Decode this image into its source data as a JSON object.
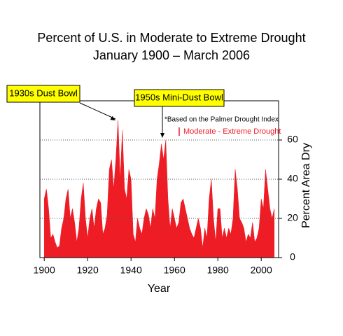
{
  "chart_data": {
    "type": "area",
    "title": "Percent of U.S. in Moderate to Extreme Drought",
    "subtitle": "January 1900 – March 2006",
    "x_label": "Year",
    "y_label": "Percent Area Dry",
    "note": "*Based on the Palmer Drought Index",
    "annotations": [
      {
        "text": "1930s Dust Bowl",
        "x": 1934
      },
      {
        "text": "1950s Mini-Dust Bowl",
        "x": 1956
      }
    ],
    "x": [
      1900,
      1901,
      1902,
      1903,
      1904,
      1905,
      1906,
      1907,
      1908,
      1909,
      1910,
      1911,
      1912,
      1913,
      1914,
      1915,
      1916,
      1917,
      1918,
      1919,
      1920,
      1921,
      1922,
      1923,
      1924,
      1925,
      1926,
      1927,
      1928,
      1929,
      1930,
      1931,
      1932,
      1933,
      1934,
      1935,
      1936,
      1937,
      1938,
      1939,
      1940,
      1941,
      1942,
      1943,
      1944,
      1945,
      1946,
      1947,
      1948,
      1949,
      1950,
      1951,
      1952,
      1953,
      1954,
      1955,
      1956,
      1957,
      1958,
      1959,
      1960,
      1961,
      1962,
      1963,
      1964,
      1965,
      1966,
      1967,
      1968,
      1969,
      1970,
      1971,
      1972,
      1973,
      1974,
      1975,
      1976,
      1977,
      1978,
      1979,
      1980,
      1981,
      1982,
      1983,
      1984,
      1985,
      1986,
      1987,
      1988,
      1989,
      1990,
      1991,
      1992,
      1993,
      1994,
      1995,
      1996,
      1997,
      1998,
      1999,
      2000,
      2001,
      2002,
      2003,
      2004,
      2005,
      2006
    ],
    "series": [
      {
        "name": "Moderate - Extreme Drought",
        "color": "#ee1c25",
        "values": [
          30,
          35,
          25,
          10,
          12,
          8,
          5,
          6,
          15,
          20,
          30,
          35,
          20,
          25,
          18,
          8,
          15,
          30,
          38,
          20,
          10,
          20,
          25,
          15,
          25,
          30,
          28,
          12,
          15,
          22,
          45,
          50,
          35,
          50,
          70,
          40,
          65,
          35,
          30,
          45,
          40,
          12,
          8,
          20,
          15,
          12,
          20,
          25,
          22,
          15,
          25,
          20,
          40,
          48,
          58,
          50,
          60,
          30,
          15,
          25,
          20,
          15,
          18,
          28,
          30,
          25,
          20,
          15,
          12,
          10,
          15,
          20,
          15,
          5,
          15,
          10,
          30,
          40,
          20,
          8,
          25,
          25,
          10,
          15,
          10,
          15,
          12,
          20,
          45,
          35,
          20,
          18,
          15,
          8,
          12,
          10,
          18,
          8,
          10,
          15,
          30,
          25,
          45,
          35,
          25,
          20,
          25
        ]
      }
    ],
    "xlim": [
      1898,
      2008
    ],
    "ylim": [
      0,
      80
    ],
    "xticks": [
      1900,
      1920,
      1940,
      1960,
      1980,
      2000
    ],
    "yticks": [
      0,
      20,
      40,
      60
    ],
    "grid": true,
    "y_axis_side": "right"
  }
}
